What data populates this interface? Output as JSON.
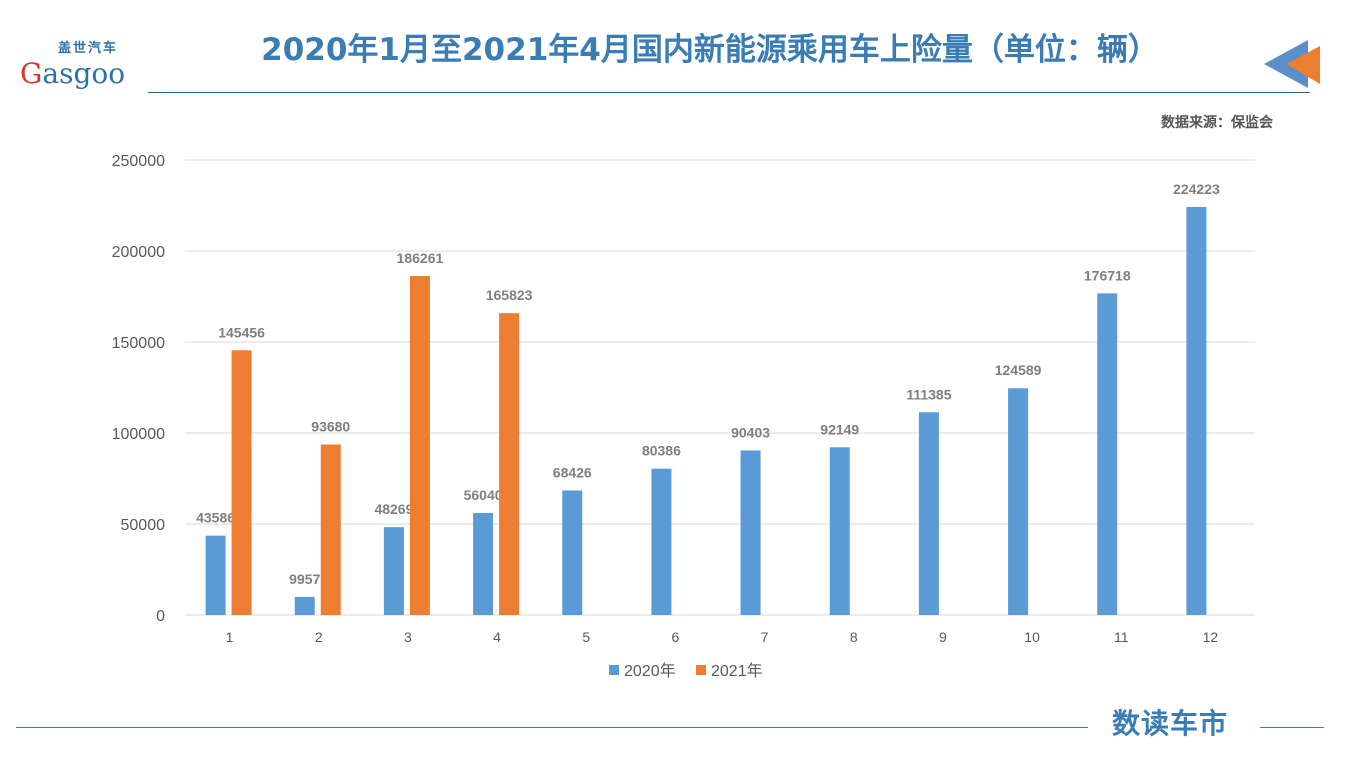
{
  "header": {
    "title": "2020年1月至2021年4月国内新能源乘用车上险量（单位：辆）",
    "source": "数据来源：保监会",
    "logo_cn": "盖世汽车",
    "logo_en": "Gasgoo",
    "brand": "数读车市"
  },
  "colors": {
    "title": "#3a7cb4",
    "series_2020": "#5b9bd5",
    "series_2021": "#ed7d31"
  },
  "chart_data": {
    "type": "bar",
    "categories": [
      "1",
      "2",
      "3",
      "4",
      "5",
      "6",
      "7",
      "8",
      "9",
      "10",
      "11",
      "12"
    ],
    "series": [
      {
        "name": "2020年",
        "values": [
          43586,
          9957,
          48269,
          56040,
          68426,
          80386,
          90403,
          92149,
          111385,
          124589,
          176718,
          224223
        ]
      },
      {
        "name": "2021年",
        "values": [
          145456,
          93680,
          186261,
          165823,
          null,
          null,
          null,
          null,
          null,
          null,
          null,
          null
        ]
      }
    ],
    "yticks": [
      0,
      50000,
      100000,
      150000,
      200000,
      250000
    ],
    "ylim": [
      0,
      250000
    ],
    "grid": true,
    "legend": "bottom"
  }
}
